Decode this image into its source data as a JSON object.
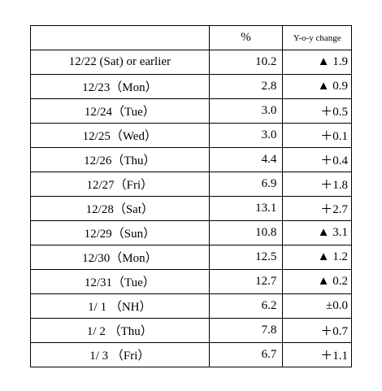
{
  "table": {
    "header": [
      "%",
      "Y-o-y change"
    ],
    "rows": [
      [
        "12/22 (Sat) or earlier",
        "10.2",
        "▲ 1.9"
      ],
      [
        "12/23（Mon）",
        "2.8",
        "▲ 0.9"
      ],
      [
        "12/24（Tue）",
        "3.0",
        "＋0.5"
      ],
      [
        "12/25（Wed）",
        "3.0",
        "＋0.1"
      ],
      [
        "12/26（Thu）",
        "4.4",
        "＋0.4"
      ],
      [
        "12/27（Fri）",
        "6.9",
        "＋1.8"
      ],
      [
        "12/28（Sat）",
        "13.1",
        "＋2.7"
      ],
      [
        "12/29（Sun）",
        "10.8",
        "▲ 3.1"
      ],
      [
        "12/30（Mon）",
        "12.5",
        "▲ 1.2"
      ],
      [
        "12/31（Tue）",
        "12.7",
        "▲ 0.2"
      ],
      [
        "1/ 1 （NH）",
        "6.2",
        "±0.0"
      ],
      [
        "1/ 2 （Thu）",
        "7.8",
        "＋0.7"
      ],
      [
        "1/ 3 （Fri）",
        "6.7",
        "＋1.1"
      ]
    ]
  }
}
